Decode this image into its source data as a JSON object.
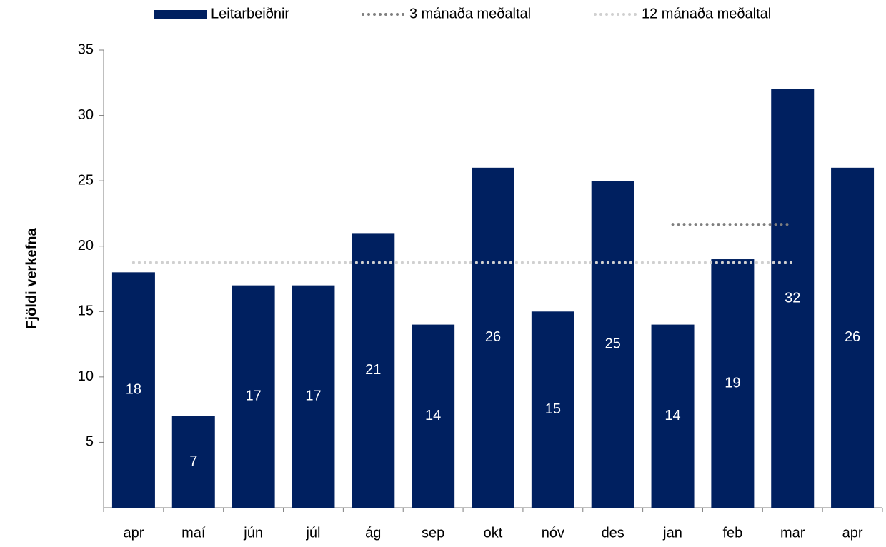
{
  "chart_data": {
    "type": "bar",
    "y_label": "Fjöldi verkefna",
    "categories": [
      "apr",
      "maí",
      "jún",
      "júl",
      "ág",
      "sep",
      "okt",
      "nóv",
      "des",
      "jan",
      "feb",
      "mar",
      "apr"
    ],
    "series": [
      {
        "name": "Leitarbeiðnir",
        "type": "bar",
        "color": "#002060",
        "values": [
          18,
          7,
          17,
          17,
          21,
          14,
          26,
          15,
          25,
          14,
          19,
          32,
          26
        ]
      },
      {
        "name": "3 mánaða meðaltal",
        "type": "line",
        "color": "#7f7f7f",
        "values": [
          null,
          null,
          null,
          null,
          null,
          null,
          null,
          null,
          null,
          21.67,
          21.67,
          21.67,
          null
        ]
      },
      {
        "name": "12 mánaða meðaltal",
        "type": "line",
        "color": "#d0d0d0",
        "values": [
          18.75,
          18.75,
          18.75,
          18.75,
          18.75,
          18.75,
          18.75,
          18.75,
          18.75,
          18.75,
          18.75,
          18.75,
          null
        ]
      }
    ],
    "ylim": [
      0,
      35
    ],
    "yticks": [
      5,
      10,
      15,
      20,
      25,
      30,
      35
    ],
    "grid": false,
    "legend": "top"
  }
}
